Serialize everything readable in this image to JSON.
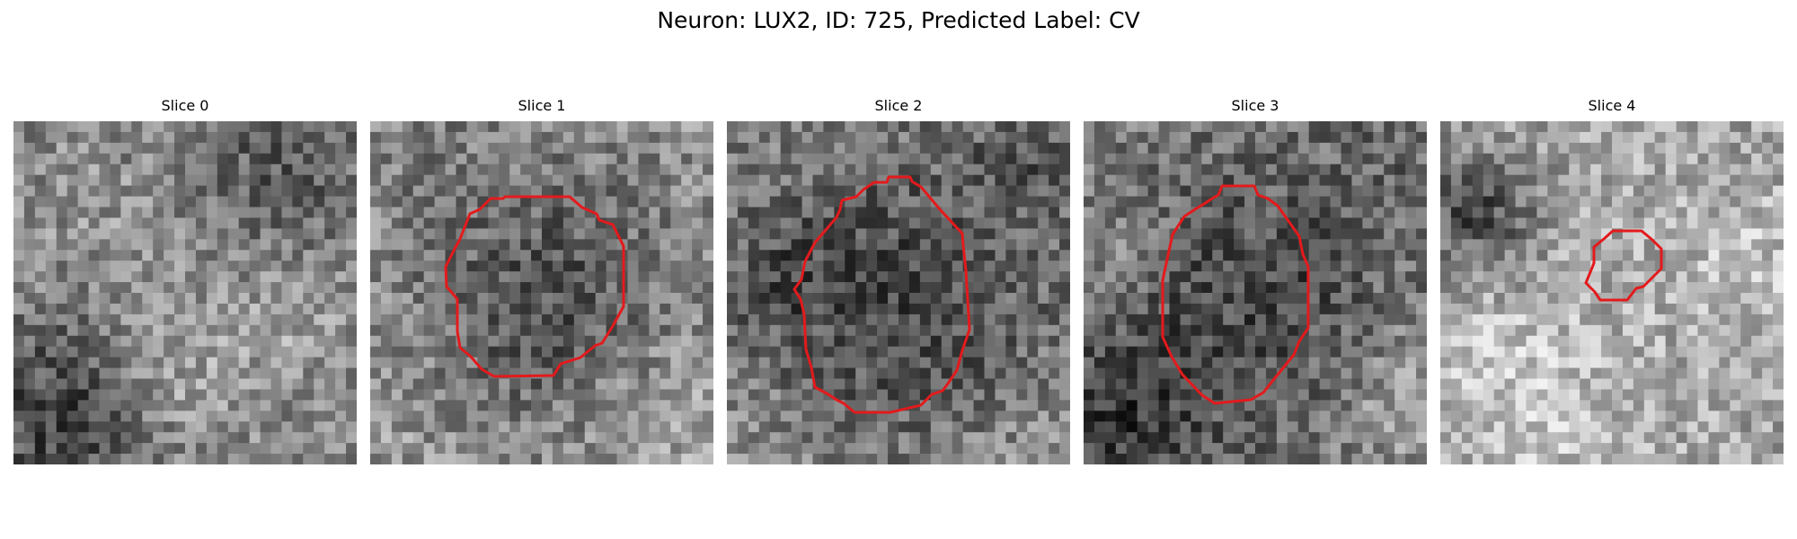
{
  "title": "Neuron: LUX2, ID: 725, Predicted Label: CV",
  "outline_color": "#e31a1c",
  "panels": [
    {
      "title": "Slice 0",
      "has_outline": false
    },
    {
      "title": "Slice 1",
      "has_outline": true
    },
    {
      "title": "Slice 2",
      "has_outline": true
    },
    {
      "title": "Slice 3",
      "has_outline": true
    },
    {
      "title": "Slice 4",
      "has_outline": true
    }
  ]
}
